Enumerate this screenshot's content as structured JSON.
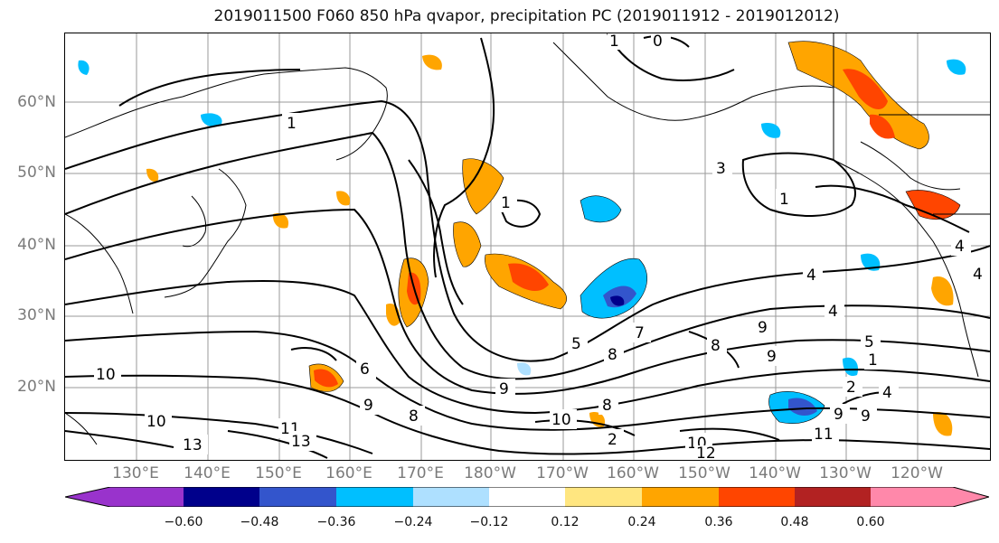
{
  "title": "2019011500 F060 850 hPa qvapor, precipitation PC (2019011912 - 2019012012)",
  "map": {
    "lat_labels": [
      "60°N",
      "50°N",
      "40°N",
      "30°N",
      "20°N"
    ],
    "lon_labels": [
      "130°E",
      "140°E",
      "150°E",
      "160°E",
      "170°E",
      "180°W",
      "170°W",
      "160°W",
      "150°W",
      "140°W",
      "130°W",
      "120°W"
    ],
    "contour_labels": [
      "1",
      "1",
      "0",
      "1",
      "1",
      "3",
      "4",
      "4",
      "4",
      "4",
      "4",
      "9",
      "9",
      "9",
      "9",
      "8",
      "8",
      "8",
      "7",
      "6",
      "5",
      "5",
      "10",
      "10",
      "10",
      "10",
      "11",
      "11",
      "13",
      "13",
      "12",
      "1",
      "2",
      "2",
      "9",
      "9",
      "8"
    ]
  },
  "colorbar": {
    "ticks": [
      "−0.60",
      "−0.48",
      "−0.36",
      "−0.24",
      "−0.12",
      "0.12",
      "0.24",
      "0.36",
      "0.48",
      "0.60"
    ],
    "colors": [
      "#9933cc",
      "#00008b",
      "#3355cc",
      "#00bfff",
      "#aee0ff",
      "#ffffff",
      "#ffe680",
      "#ffa500",
      "#ff4500",
      "#b22222",
      "#ff88aa"
    ],
    "extend": "both"
  }
}
